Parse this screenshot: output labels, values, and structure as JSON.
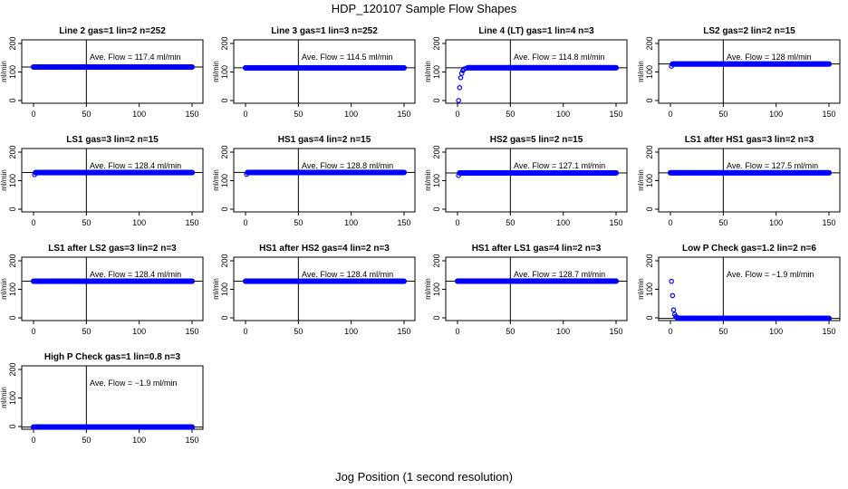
{
  "figure": {
    "title": "HDP_120107  Sample Flow Shapes",
    "xlabel": "Jog Position (1 second resolution)"
  },
  "colors": {
    "points": "#0000ff",
    "lines": "#000000",
    "background": "#ffffff"
  },
  "chart_data": [
    {
      "type": "scatter",
      "title": "Line 2 gas=1 lin=2 n=252",
      "ylabel": "ml/min",
      "xlim": [
        0,
        150
      ],
      "ylim": [
        0,
        200
      ],
      "xticks": [
        0,
        50,
        100,
        150
      ],
      "yticks": [
        0,
        100,
        200
      ],
      "vline": 50,
      "hline": 117.4,
      "annotation": "Ave. Flow =  117.4  ml/min",
      "series": [
        {
          "x": [
            0,
            150
          ],
          "y": [
            117.4,
            117.4
          ],
          "note": "constant"
        }
      ]
    },
    {
      "type": "scatter",
      "title": "Line 3 gas=1 lin=3 n=252",
      "ylabel": "ml/min",
      "xlim": [
        0,
        150
      ],
      "ylim": [
        0,
        200
      ],
      "xticks": [
        0,
        50,
        100,
        150
      ],
      "yticks": [
        0,
        100,
        200
      ],
      "vline": 50,
      "hline": 114.5,
      "annotation": "Ave. Flow =  114.5  ml/min",
      "series": [
        {
          "x": [
            0,
            150
          ],
          "y": [
            114.5,
            114.5
          ]
        }
      ]
    },
    {
      "type": "scatter",
      "title": "Line 4 (LT) gas=1 lin=4 n=3",
      "ylabel": "ml/min",
      "xlim": [
        0,
        150
      ],
      "ylim": [
        0,
        200
      ],
      "xticks": [
        0,
        50,
        100,
        150
      ],
      "yticks": [
        0,
        100,
        200
      ],
      "vline": 50,
      "hline": 114.8,
      "annotation": "Ave. Flow =  114.8  ml/min",
      "series": [
        {
          "start_points": [
            [
              1,
              0
            ],
            [
              2,
              45
            ],
            [
              3,
              80
            ],
            [
              4,
              95
            ],
            [
              5,
              105
            ],
            [
              6,
              110
            ],
            [
              8,
              113
            ]
          ],
          "x": [
            10,
            150
          ],
          "y": [
            114.8,
            114.8
          ]
        }
      ]
    },
    {
      "type": "scatter",
      "title": "LS2 gas=2 lin=2 n=15",
      "ylabel": "ml/min",
      "xlim": [
        0,
        150
      ],
      "ylim": [
        0,
        200
      ],
      "xticks": [
        0,
        50,
        100,
        150
      ],
      "yticks": [
        0,
        100,
        200
      ],
      "vline": 50,
      "hline": 128,
      "annotation": "Ave. Flow =  128  ml/min",
      "series": [
        {
          "start_points": [
            [
              1,
              120
            ]
          ],
          "x": [
            2,
            150
          ],
          "y": [
            128,
            128
          ]
        }
      ]
    },
    {
      "type": "scatter",
      "title": "LS1 gas=3 lin=2 n=15",
      "ylabel": "ml/min",
      "xlim": [
        0,
        150
      ],
      "ylim": [
        0,
        200
      ],
      "xticks": [
        0,
        50,
        100,
        150
      ],
      "yticks": [
        0,
        100,
        200
      ],
      "vline": 50,
      "hline": 128.4,
      "annotation": "Ave. Flow =  128.4  ml/min",
      "series": [
        {
          "start_points": [
            [
              1,
              121
            ]
          ],
          "x": [
            2,
            150
          ],
          "y": [
            128.4,
            128.4
          ]
        }
      ]
    },
    {
      "type": "scatter",
      "title": "HS1 gas=4 lin=2 n=15",
      "ylabel": "ml/min",
      "xlim": [
        0,
        150
      ],
      "ylim": [
        0,
        200
      ],
      "xticks": [
        0,
        50,
        100,
        150
      ],
      "yticks": [
        0,
        100,
        200
      ],
      "vline": 50,
      "hline": 128.8,
      "annotation": "Ave. Flow =  128.8  ml/min",
      "series": [
        {
          "start_points": [
            [
              1,
              122
            ]
          ],
          "x": [
            2,
            150
          ],
          "y": [
            128.8,
            128.8
          ]
        }
      ]
    },
    {
      "type": "scatter",
      "title": "HS2 gas=5 lin=2 n=15",
      "ylabel": "ml/min",
      "xlim": [
        0,
        150
      ],
      "ylim": [
        0,
        200
      ],
      "xticks": [
        0,
        50,
        100,
        150
      ],
      "yticks": [
        0,
        100,
        200
      ],
      "vline": 50,
      "hline": 127.1,
      "annotation": "Ave. Flow =  127.1  ml/min",
      "series": [
        {
          "start_points": [
            [
              1,
              118
            ]
          ],
          "x": [
            2,
            150
          ],
          "y": [
            127.1,
            127.1
          ]
        }
      ]
    },
    {
      "type": "scatter",
      "title": "LS1 after HS1 gas=3 lin=2 n=3",
      "ylabel": "ml/min",
      "xlim": [
        0,
        150
      ],
      "ylim": [
        0,
        200
      ],
      "xticks": [
        0,
        50,
        100,
        150
      ],
      "yticks": [
        0,
        100,
        200
      ],
      "vline": 50,
      "hline": 127.5,
      "annotation": "Ave. Flow =  127.5  ml/min",
      "series": [
        {
          "x": [
            0,
            150
          ],
          "y": [
            127.5,
            127.5
          ]
        }
      ]
    },
    {
      "type": "scatter",
      "title": "LS1 after LS2 gas=3 lin=2 n=3",
      "ylabel": "ml/min",
      "xlim": [
        0,
        150
      ],
      "ylim": [
        0,
        200
      ],
      "xticks": [
        0,
        50,
        100,
        150
      ],
      "yticks": [
        0,
        100,
        200
      ],
      "vline": 50,
      "hline": 128.4,
      "annotation": "Ave. Flow =  128.4  ml/min",
      "series": [
        {
          "x": [
            0,
            150
          ],
          "y": [
            128.4,
            128.4
          ]
        }
      ]
    },
    {
      "type": "scatter",
      "title": "HS1 after HS2 gas=4 lin=2 n=3",
      "ylabel": "ml/min",
      "xlim": [
        0,
        150
      ],
      "ylim": [
        0,
        200
      ],
      "xticks": [
        0,
        50,
        100,
        150
      ],
      "yticks": [
        0,
        100,
        200
      ],
      "vline": 50,
      "hline": 128.4,
      "annotation": "Ave. Flow =  128.4  ml/min",
      "series": [
        {
          "x": [
            0,
            150
          ],
          "y": [
            128.4,
            128.4
          ]
        }
      ]
    },
    {
      "type": "scatter",
      "title": "HS1 after LS1 gas=4 lin=2 n=3",
      "ylabel": "ml/min",
      "xlim": [
        0,
        150
      ],
      "ylim": [
        0,
        200
      ],
      "xticks": [
        0,
        50,
        100,
        150
      ],
      "yticks": [
        0,
        100,
        200
      ],
      "vline": 50,
      "hline": 128.7,
      "annotation": "Ave. Flow =  128.7  ml/min",
      "series": [
        {
          "x": [
            0,
            150
          ],
          "y": [
            128.7,
            128.7
          ]
        }
      ]
    },
    {
      "type": "scatter",
      "title": "Low P Check gas=1.2 lin=2 n=6",
      "ylabel": "ml/min",
      "xlim": [
        0,
        150
      ],
      "ylim": [
        0,
        200
      ],
      "xticks": [
        0,
        50,
        100,
        150
      ],
      "yticks": [
        0,
        100,
        200
      ],
      "vline": 50,
      "hline": -1.9,
      "annotation": "Ave. Flow =  −1.9  ml/min",
      "series": [
        {
          "start_points": [
            [
              1,
              128
            ],
            [
              2,
              78
            ],
            [
              3,
              28
            ],
            [
              4,
              12
            ],
            [
              5,
              5
            ],
            [
              6,
              2
            ]
          ],
          "x": [
            7,
            150
          ],
          "y": [
            -1.9,
            -1.9
          ]
        }
      ]
    },
    {
      "type": "scatter",
      "title": "High P Check gas=1 lin=0.8 n=3",
      "ylabel": "ml/min",
      "xlim": [
        0,
        150
      ],
      "ylim": [
        0,
        200
      ],
      "xticks": [
        0,
        50,
        100,
        150
      ],
      "yticks": [
        0,
        100,
        200
      ],
      "vline": 50,
      "hline": -1.9,
      "annotation": "Ave. Flow =  −1.9  ml/min",
      "series": [
        {
          "x": [
            0,
            150
          ],
          "y": [
            -1.9,
            -1.9
          ]
        }
      ]
    }
  ]
}
